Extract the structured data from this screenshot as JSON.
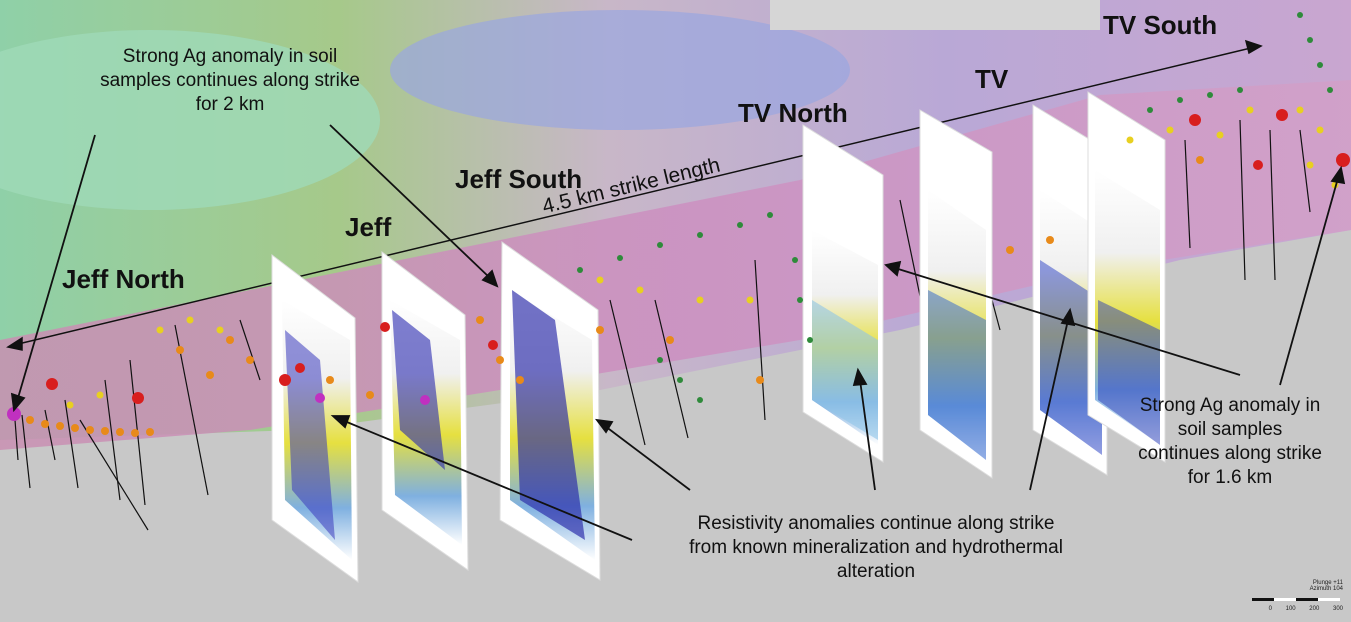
{
  "zones": {
    "jeff_north": "Jeff North",
    "jeff": "Jeff",
    "jeff_south": "Jeff South",
    "tv_north": "TV North",
    "tv": "TV",
    "tv_south": "TV South"
  },
  "strike_length_label": "4.5 km strike length",
  "annotations": {
    "ag_anomaly_west": "Strong Ag anomaly in soil samples continues along strike for 2 km",
    "ag_anomaly_east": "Strong Ag anomaly in soil samples continues along strike for 1.6 km",
    "resistivity": "Resistivity anomalies continue along strike from known mineralization and hydrothermal alteration"
  },
  "orientation": {
    "plunge": "Plunge +11",
    "azimuth": "Azimuth 104"
  },
  "scale_ticks": [
    "0",
    "100",
    "200",
    "300"
  ],
  "colors": {
    "soil_green": "#2e8a3a",
    "soil_yellow": "#e8d020",
    "soil_orange": "#e88a1a",
    "soil_red": "#d81e1e",
    "soil_magenta": "#c030c0",
    "resistivity_blue": "#2a2ab0",
    "resistivity_yellow": "#e6e040"
  }
}
